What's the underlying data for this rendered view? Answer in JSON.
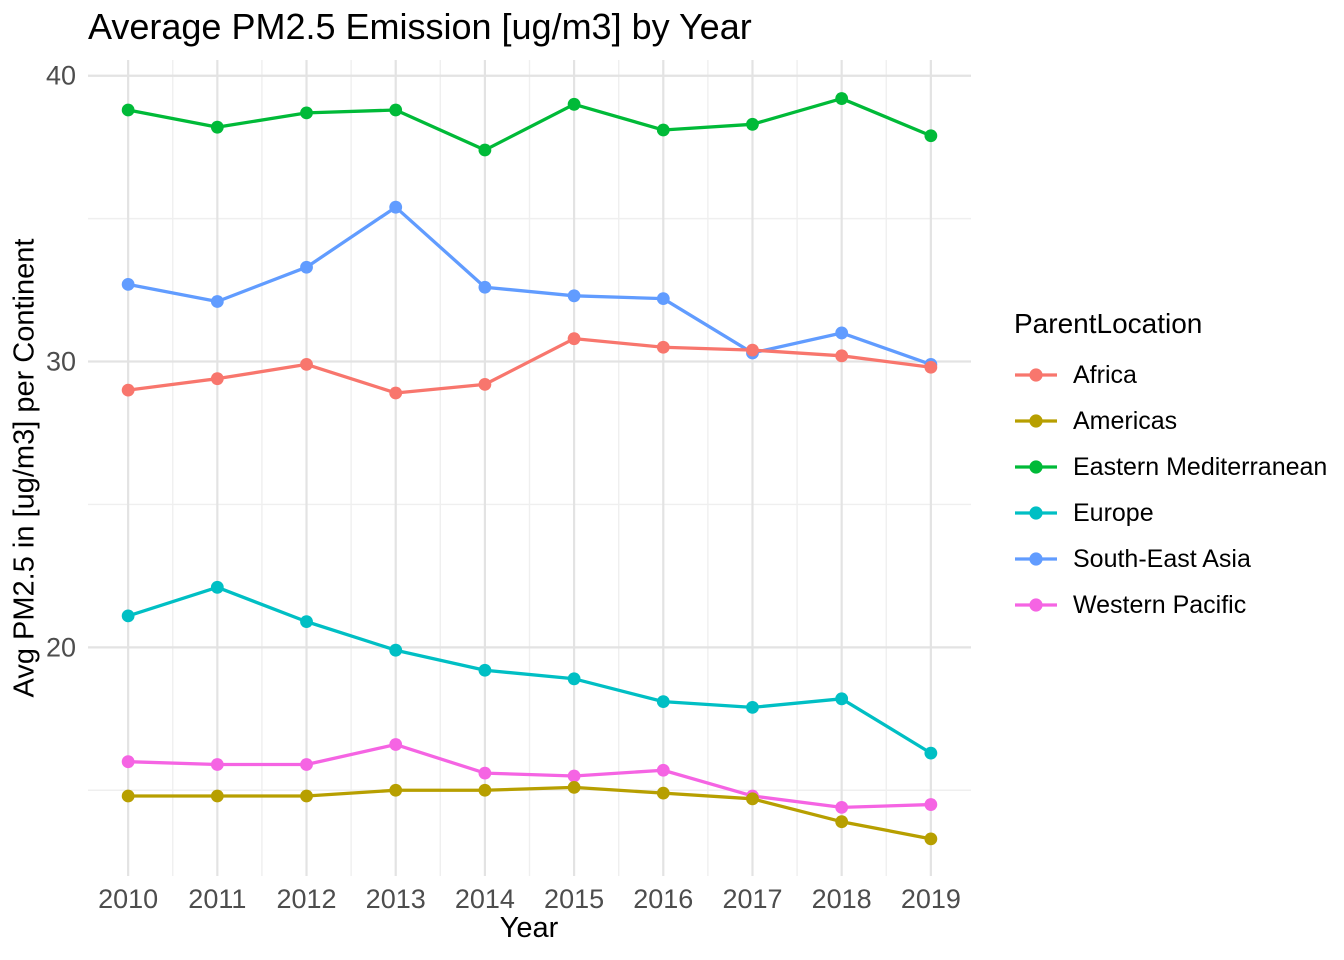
{
  "chart_data": {
    "type": "line",
    "title": "Average PM2.5 Emission [ug/m3] by Year",
    "xlabel": "Year",
    "ylabel": "Avg PM2.5 in [ug/m3] per Continent",
    "legend_title": "ParentLocation",
    "legend_position": "right",
    "grid": true,
    "x": [
      2010,
      2011,
      2012,
      2013,
      2014,
      2015,
      2016,
      2017,
      2018,
      2019
    ],
    "x_tick_labels": [
      "2010",
      "2011",
      "2012",
      "2013",
      "2014",
      "2015",
      "2016",
      "2017",
      "2018",
      "2019"
    ],
    "y_ticks": [
      20,
      30,
      40
    ],
    "y_tick_labels": [
      "20",
      "30",
      "40"
    ],
    "y_minor_ticks": [
      15,
      25,
      35
    ],
    "x_minor_ticks": [
      2010.5,
      2011.5,
      2012.5,
      2013.5,
      2014.5,
      2015.5,
      2016.5,
      2017.5,
      2018.5
    ],
    "xlim": [
      2009.55,
      2019.45
    ],
    "ylim": [
      12.0,
      40.55
    ],
    "series": [
      {
        "name": "Africa",
        "color": "#F8766D",
        "values": [
          29.0,
          29.4,
          29.9,
          28.9,
          29.2,
          30.8,
          30.5,
          30.4,
          30.2,
          29.8
        ]
      },
      {
        "name": "Americas",
        "color": "#B79F00",
        "values": [
          14.8,
          14.8,
          14.8,
          15.0,
          15.0,
          15.1,
          14.9,
          14.7,
          13.9,
          13.3
        ]
      },
      {
        "name": "Eastern Mediterranean",
        "color": "#00BA38",
        "values": [
          38.8,
          38.2,
          38.7,
          38.8,
          37.4,
          39.0,
          38.1,
          38.3,
          39.2,
          37.9
        ]
      },
      {
        "name": "Europe",
        "color": "#00BFC4",
        "values": [
          21.1,
          22.1,
          20.9,
          19.9,
          19.2,
          18.9,
          18.1,
          17.9,
          18.2,
          16.3
        ]
      },
      {
        "name": "South-East Asia",
        "color": "#619CFF",
        "values": [
          32.7,
          32.1,
          33.3,
          35.4,
          32.6,
          32.3,
          32.2,
          30.3,
          31.0,
          29.9
        ]
      },
      {
        "name": "Western Pacific",
        "color": "#F564E3",
        "values": [
          16.0,
          15.9,
          15.9,
          16.6,
          15.6,
          15.5,
          15.7,
          14.8,
          14.4,
          14.5
        ]
      }
    ]
  },
  "colors": {
    "background": "#FFFFFF",
    "axis_text": "#4D4D4D",
    "title_text": "#000000",
    "grid_major": "#E3E3E3",
    "grid_minor": "#EFEFEF"
  }
}
